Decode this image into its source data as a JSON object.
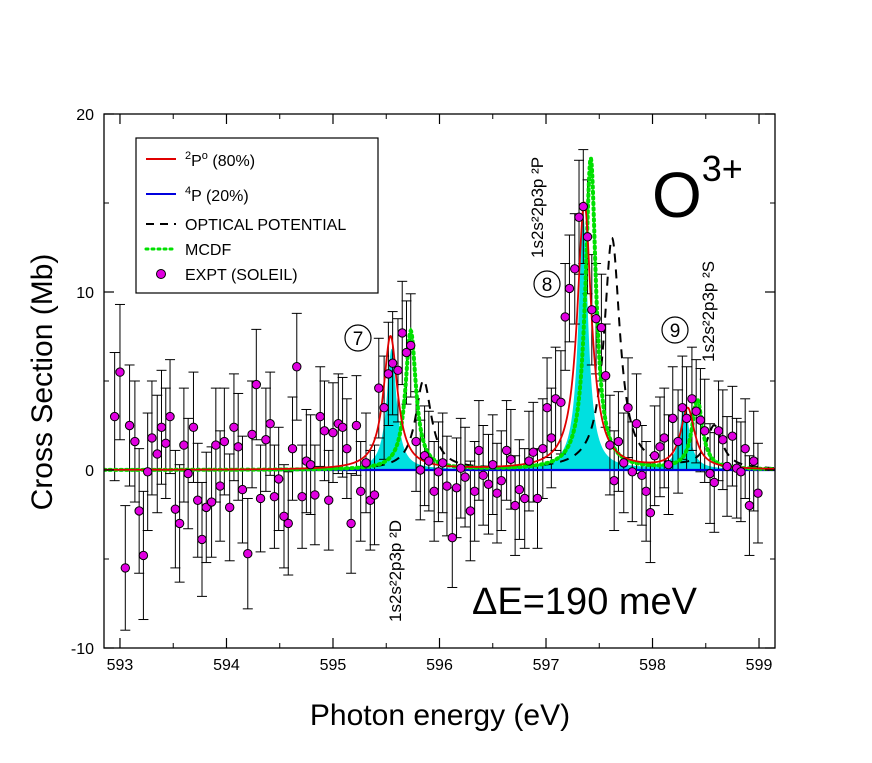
{
  "chart_data": {
    "type": "scatter",
    "title": "",
    "xlabel": "Photon energy (eV)",
    "ylabel": "Cross Section (Mb)",
    "xlim": [
      592.85,
      599.15
    ],
    "ylim": [
      -10,
      20
    ],
    "x_ticks": [
      593,
      594,
      595,
      596,
      597,
      598,
      599
    ],
    "x_tick_labels": [
      "593",
      "594",
      "595",
      "596",
      "597",
      "598",
      "599"
    ],
    "y_ticks": [
      -10,
      0,
      10,
      20
    ],
    "y_tick_labels": [
      "-10",
      "0",
      "10",
      "20"
    ],
    "ion": {
      "base": "O",
      "charge": "3+"
    },
    "resolution_label": "ΔE=190 meV",
    "legend": {
      "placement": "top-left",
      "entries": [
        {
          "key": "2p",
          "sup": "2",
          "text": "P",
          "sup2": "o",
          "tail": " (80%)",
          "style": "solid",
          "color": "#e00000"
        },
        {
          "key": "4p",
          "sup": "4",
          "text": "P",
          "sup2": "",
          "tail": "  (20%)",
          "style": "solid",
          "color": "#0000dd"
        },
        {
          "key": "opt",
          "sup": "",
          "text": "OPTICAL POTENTIAL",
          "sup2": "",
          "tail": "",
          "style": "dashed",
          "color": "#000000"
        },
        {
          "key": "mcdf",
          "sup": "",
          "text": "MCDF",
          "sup2": "",
          "tail": "",
          "style": "dotted",
          "color": "#00e000"
        },
        {
          "key": "expt",
          "sup": "",
          "text": "EXPT (SOLEIL)",
          "sup2": "",
          "tail": "",
          "style": "marker",
          "color": "#e000e0"
        }
      ]
    },
    "peaks": [
      {
        "id": "7",
        "label": "1s2s²2p3p ²D",
        "energy": 595.55
      },
      {
        "id": "8",
        "label": "1s2s²2p3p ²P",
        "energy": 597.35
      },
      {
        "id": "9",
        "label": "1s2s²2p3p ²S",
        "energy": 598.32
      }
    ],
    "series_models": [
      {
        "name": "2Po (80%)",
        "color": "#e00000",
        "lines": [
          {
            "x0": 595.54,
            "A": 7.5,
            "g": 0.08
          },
          {
            "x0": 597.36,
            "A": 15.0,
            "g": 0.08
          },
          {
            "x0": 598.33,
            "A": 3.4,
            "g": 0.08
          }
        ]
      },
      {
        "name": "4P (20%)",
        "color": "#0000dd",
        "constant": 0
      },
      {
        "name": "OPTICAL POTENTIAL",
        "color": "#000000",
        "lines": [
          {
            "x0": 595.85,
            "A": 5.0,
            "g": 0.09
          },
          {
            "x0": 597.62,
            "A": 13.0,
            "g": 0.09
          },
          {
            "x0": 598.58,
            "A": 2.4,
            "g": 0.09
          }
        ]
      },
      {
        "name": "MCDF",
        "color": "#00e000",
        "lines": [
          {
            "x0": 595.73,
            "A": 7.8,
            "g": 0.06
          },
          {
            "x0": 597.42,
            "A": 17.5,
            "g": 0.06
          },
          {
            "x0": 598.42,
            "A": 3.9,
            "g": 0.06
          }
        ]
      },
      {
        "name": "shaded",
        "color": "#00e0e0",
        "lines": [
          {
            "x0": 595.55,
            "A": 6.8,
            "g": 0.055
          },
          {
            "x0": 597.35,
            "A": 14.2,
            "g": 0.055
          },
          {
            "x0": 598.3,
            "A": 3.6,
            "g": 0.055
          }
        ]
      }
    ],
    "expt": [
      [
        592.95,
        3.0,
        3.6
      ],
      [
        593.0,
        5.5,
        3.8
      ],
      [
        593.05,
        -5.5,
        3.5
      ],
      [
        593.09,
        2.5,
        3.4
      ],
      [
        593.14,
        1.6,
        3.4
      ],
      [
        593.18,
        -2.3,
        3.5
      ],
      [
        593.22,
        -4.8,
        3.6
      ],
      [
        593.26,
        -0.1,
        3.3
      ],
      [
        593.3,
        1.8,
        3.2
      ],
      [
        593.35,
        0.9,
        3.3
      ],
      [
        593.39,
        2.4,
        3.2
      ],
      [
        593.43,
        1.5,
        3.1
      ],
      [
        593.47,
        3.0,
        3.2
      ],
      [
        593.52,
        -2.2,
        3.3
      ],
      [
        593.56,
        -3.0,
        3.3
      ],
      [
        593.6,
        1.4,
        3.2
      ],
      [
        593.64,
        -0.2,
        3.1
      ],
      [
        593.69,
        2.4,
        3.1
      ],
      [
        593.73,
        -1.7,
        3.2
      ],
      [
        593.77,
        -3.9,
        3.2
      ],
      [
        593.81,
        -2.1,
        3.1
      ],
      [
        593.86,
        -1.8,
        3.1
      ],
      [
        593.9,
        1.4,
        3.2
      ],
      [
        593.94,
        -0.9,
        3.1
      ],
      [
        593.98,
        1.6,
        3.0
      ],
      [
        594.03,
        -2.1,
        3.0
      ],
      [
        594.07,
        2.4,
        3.0
      ],
      [
        594.11,
        1.3,
        3.0
      ],
      [
        594.15,
        -1.1,
        3.0
      ],
      [
        594.2,
        -4.7,
        3.1
      ],
      [
        594.24,
        2.0,
        3.0
      ],
      [
        594.28,
        4.8,
        3.1
      ],
      [
        594.32,
        -1.6,
        3.0
      ],
      [
        594.37,
        1.7,
        2.9
      ],
      [
        594.41,
        2.6,
        2.9
      ],
      [
        594.45,
        -1.5,
        2.9
      ],
      [
        594.49,
        -0.5,
        2.9
      ],
      [
        594.54,
        -2.6,
        2.9
      ],
      [
        594.58,
        -3.0,
        2.9
      ],
      [
        594.62,
        1.2,
        2.9
      ],
      [
        594.66,
        5.8,
        3.0
      ],
      [
        594.71,
        -1.5,
        2.9
      ],
      [
        594.75,
        0.5,
        2.9
      ],
      [
        594.79,
        0.3,
        2.8
      ],
      [
        594.83,
        -1.4,
        2.8
      ],
      [
        594.88,
        3.0,
        2.8
      ],
      [
        594.92,
        2.2,
        2.8
      ],
      [
        594.96,
        -1.7,
        2.8
      ],
      [
        595.0,
        2.1,
        2.8
      ],
      [
        595.05,
        2.6,
        2.8
      ],
      [
        595.09,
        2.4,
        2.8
      ],
      [
        595.13,
        1.2,
        2.8
      ],
      [
        595.17,
        -3.0,
        2.8
      ],
      [
        595.22,
        2.5,
        2.8
      ],
      [
        595.26,
        -1.2,
        2.8
      ],
      [
        595.31,
        0.4,
        2.8
      ],
      [
        595.35,
        -1.7,
        2.8
      ],
      [
        595.39,
        -1.4,
        2.8
      ],
      [
        595.43,
        4.6,
        2.8
      ],
      [
        595.48,
        3.5,
        2.9
      ],
      [
        595.52,
        5.4,
        2.9
      ],
      [
        595.56,
        6.0,
        2.9
      ],
      [
        595.61,
        5.6,
        2.9
      ],
      [
        595.65,
        7.7,
        2.9
      ],
      [
        595.69,
        6.6,
        2.9
      ],
      [
        595.73,
        7.0,
        2.9
      ],
      [
        595.78,
        1.6,
        2.8
      ],
      [
        595.82,
        0.0,
        2.8
      ],
      [
        595.86,
        0.8,
        2.8
      ],
      [
        595.9,
        0.5,
        2.8
      ],
      [
        595.95,
        -1.2,
        2.8
      ],
      [
        595.99,
        -0.1,
        2.8
      ],
      [
        596.03,
        0.4,
        2.8
      ],
      [
        596.07,
        -0.9,
        2.8
      ],
      [
        596.12,
        -3.8,
        2.8
      ],
      [
        596.16,
        -1.0,
        2.8
      ],
      [
        596.2,
        0.1,
        2.8
      ],
      [
        596.24,
        -0.4,
        2.8
      ],
      [
        596.29,
        -2.3,
        2.8
      ],
      [
        596.33,
        -1.2,
        2.8
      ],
      [
        596.37,
        1.1,
        2.8
      ],
      [
        596.41,
        -0.3,
        2.8
      ],
      [
        596.46,
        -0.8,
        2.8
      ],
      [
        596.5,
        0.3,
        2.8
      ],
      [
        596.54,
        -1.3,
        2.8
      ],
      [
        596.58,
        -0.6,
        2.8
      ],
      [
        596.63,
        1.1,
        2.8
      ],
      [
        596.67,
        0.6,
        2.8
      ],
      [
        596.71,
        -2.0,
        2.8
      ],
      [
        596.75,
        -1.1,
        2.8
      ],
      [
        596.8,
        -1.6,
        2.8
      ],
      [
        596.84,
        0.5,
        2.8
      ],
      [
        596.88,
        1.0,
        2.8
      ],
      [
        596.92,
        -1.6,
        2.8
      ],
      [
        596.97,
        1.2,
        2.8
      ],
      [
        597.01,
        3.5,
        2.8
      ],
      [
        597.05,
        1.8,
        2.8
      ],
      [
        597.09,
        4.0,
        2.9
      ],
      [
        597.14,
        3.8,
        2.9
      ],
      [
        597.18,
        8.6,
        3.0
      ],
      [
        597.22,
        10.2,
        3.0
      ],
      [
        597.27,
        11.3,
        3.1
      ],
      [
        597.31,
        14.2,
        3.2
      ],
      [
        597.35,
        14.8,
        3.2
      ],
      [
        597.39,
        13.1,
        3.2
      ],
      [
        597.43,
        9.0,
        3.1
      ],
      [
        597.47,
        8.5,
        3.1
      ],
      [
        597.52,
        8.0,
        3.0
      ],
      [
        597.56,
        5.3,
        2.9
      ],
      [
        597.6,
        1.4,
        2.8
      ],
      [
        597.64,
        -0.6,
        2.8
      ],
      [
        597.68,
        1.6,
        2.8
      ],
      [
        597.73,
        0.4,
        2.8
      ],
      [
        597.77,
        3.5,
        2.8
      ],
      [
        597.81,
        -0.1,
        2.8
      ],
      [
        597.85,
        2.6,
        2.8
      ],
      [
        597.9,
        -0.3,
        2.8
      ],
      [
        597.94,
        -1.2,
        2.8
      ],
      [
        597.98,
        -2.4,
        2.8
      ],
      [
        598.02,
        0.8,
        2.8
      ],
      [
        598.07,
        1.3,
        2.8
      ],
      [
        598.11,
        1.8,
        2.8
      ],
      [
        598.15,
        0.3,
        2.8
      ],
      [
        598.19,
        2.9,
        2.9
      ],
      [
        598.24,
        1.6,
        2.9
      ],
      [
        598.28,
        3.5,
        2.9
      ],
      [
        598.32,
        2.9,
        2.9
      ],
      [
        598.37,
        4.0,
        2.9
      ],
      [
        598.41,
        3.3,
        2.9
      ],
      [
        598.45,
        2.8,
        2.9
      ],
      [
        598.49,
        2.2,
        2.9
      ],
      [
        598.54,
        -0.2,
        2.8
      ],
      [
        598.58,
        -0.7,
        2.8
      ],
      [
        598.62,
        2.2,
        2.8
      ],
      [
        598.66,
        1.7,
        2.8
      ],
      [
        598.7,
        0.2,
        2.8
      ],
      [
        598.75,
        1.9,
        2.8
      ],
      [
        598.79,
        0.1,
        2.8
      ],
      [
        598.83,
        -0.1,
        2.8
      ],
      [
        598.87,
        1.2,
        2.8
      ],
      [
        598.91,
        -2.0,
        2.8
      ],
      [
        598.95,
        0.5,
        2.8
      ],
      [
        598.99,
        -1.3,
        2.8
      ]
    ]
  }
}
